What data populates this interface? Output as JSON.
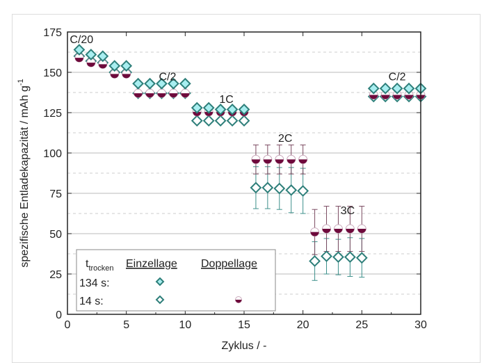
{
  "chart_data": {
    "type": "scatter",
    "xlabel": "Zyklus / -",
    "ylabel": "spezifische Entladekapazität / mAh g",
    "ylabel_sup": "-1",
    "xlim": [
      0,
      30
    ],
    "ylim": [
      0,
      175
    ],
    "xticks": [
      "0",
      "5",
      "10",
      "15",
      "20",
      "25",
      "30"
    ],
    "yticks": [
      "0",
      "25",
      "50",
      "75",
      "100",
      "125",
      "150",
      "175"
    ],
    "grid": true,
    "annotations": [
      {
        "text": "C/20",
        "x": 1.2,
        "y": 168
      },
      {
        "text": "C/2",
        "x": 8.5,
        "y": 145
      },
      {
        "text": "1C",
        "x": 13.5,
        "y": 131
      },
      {
        "text": "2C",
        "x": 18.5,
        "y": 107
      },
      {
        "text": "3C",
        "x": 23.8,
        "y": 62
      },
      {
        "text": "C/2",
        "x": 28,
        "y": 145
      }
    ],
    "legend": {
      "placement": "bottom-left",
      "header_t": "t",
      "header_sub": "trocken",
      "col1": "Einzellage",
      "col2": "Doppellage",
      "row1": "134 s:",
      "row2": "14 s:"
    },
    "series": [
      {
        "name": "134 s Einzellage",
        "marker": "diamond-filled",
        "color": "#a8eef0",
        "edge": "#2e7f7a",
        "x": [
          1,
          2,
          3,
          4,
          5,
          6,
          7,
          8,
          9,
          10,
          11,
          12,
          13,
          14,
          15,
          26,
          27,
          28,
          29,
          30
        ],
        "y": [
          164,
          161,
          160,
          154,
          154,
          143,
          143,
          143,
          143,
          143,
          128,
          128,
          127,
          127,
          127,
          140,
          140,
          140,
          140,
          140
        ]
      },
      {
        "name": "14 s Einzellage",
        "marker": "diamond-open",
        "color": "#ffffff",
        "edge": "#2e7f7a",
        "x": [
          1,
          2,
          3,
          4,
          5,
          6,
          7,
          8,
          9,
          10,
          11,
          12,
          13,
          14,
          15,
          16,
          17,
          18,
          19,
          20,
          21,
          22,
          23,
          24,
          25,
          26,
          27,
          28,
          29,
          30
        ],
        "y": [
          160,
          157,
          156,
          150,
          150,
          137,
          137,
          137,
          137,
          137,
          120,
          120,
          120,
          120,
          120,
          78.5,
          78.5,
          78,
          77,
          76.5,
          33,
          36,
          35.5,
          35.5,
          35,
          135,
          135,
          135,
          135,
          135
        ],
        "err": [
          0,
          0,
          0,
          0,
          0,
          0,
          0,
          0,
          0,
          0,
          0,
          0,
          0,
          0,
          0,
          13,
          13,
          13,
          14,
          14,
          12,
          11,
          11,
          12,
          12,
          0,
          0,
          0,
          0,
          0
        ]
      },
      {
        "name": "14 s Doppellage",
        "marker": "circle-half",
        "color": "#6e0a3c",
        "edge": "#6e0a3c",
        "x": [
          1,
          2,
          3,
          4,
          5,
          6,
          7,
          8,
          9,
          10,
          11,
          12,
          13,
          14,
          15,
          16,
          17,
          18,
          19,
          20,
          21,
          22,
          23,
          24,
          25,
          26,
          27,
          28,
          29,
          30
        ],
        "y": [
          159,
          156,
          155,
          149,
          149,
          137,
          137,
          137,
          137,
          137,
          125.5,
          125.5,
          125.5,
          125.5,
          125.5,
          96,
          96,
          96,
          96,
          96,
          51,
          53,
          53,
          53,
          53,
          136,
          136,
          136,
          136,
          136
        ],
        "err": [
          0,
          0,
          0,
          0,
          0,
          0,
          0,
          0,
          0,
          0,
          0,
          0,
          0,
          0,
          0,
          9,
          9,
          9,
          9,
          9,
          14,
          14,
          14,
          14,
          14,
          0,
          0,
          0,
          0,
          0
        ]
      }
    ]
  }
}
